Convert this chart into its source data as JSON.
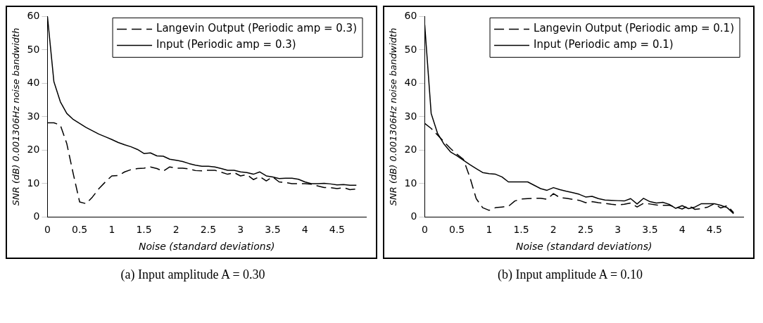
{
  "chart_data": [
    {
      "type": "line",
      "xlabel": "Noise (standard deviations)",
      "ylabel": "SNR (dB) 0.001306Hz noise bandwidth",
      "legend": "top right",
      "grid": false,
      "xlim": [
        0,
        4.95
      ],
      "xticks": [
        0,
        0.5,
        1,
        1.5,
        2,
        2.5,
        3,
        3.5,
        4,
        4.5
      ],
      "ylim": [
        0,
        60
      ],
      "yticks": [
        0,
        10,
        20,
        30,
        40,
        50,
        60
      ],
      "annotations": [
        "(a) Input amplitude A = 0.30"
      ],
      "x": [
        0,
        0.1,
        0.2,
        0.3,
        0.4,
        0.5,
        0.6,
        0.7,
        0.8,
        0.9,
        1.0,
        1.1,
        1.2,
        1.3,
        1.4,
        1.5,
        1.6,
        1.7,
        1.8,
        1.9,
        2.0,
        2.1,
        2.2,
        2.3,
        2.4,
        2.5,
        2.6,
        2.7,
        2.8,
        2.9,
        3.0,
        3.1,
        3.2,
        3.3,
        3.4,
        3.5,
        3.6,
        3.7,
        3.8,
        3.9,
        4.0,
        4.1,
        4.2,
        4.3,
        4.4,
        4.5,
        4.6,
        4.7,
        4.8
      ],
      "series": [
        {
          "name": "Langevin Output (Periodic amp = 0.3)",
          "color": "#000000",
          "line_style": "dashed",
          "values": [
            28.2,
            28.2,
            27.5,
            22,
            13,
            4.5,
            4,
            6,
            8.5,
            10.5,
            12.3,
            12.4,
            13.5,
            14.2,
            14.5,
            14.6,
            15,
            14.5,
            13.7,
            15,
            14.6,
            14.6,
            14.4,
            13.9,
            13.8,
            14,
            14,
            13.4,
            12.8,
            13.3,
            12.3,
            12.7,
            11.2,
            12.1,
            10.8,
            12,
            10.5,
            10.3,
            10,
            10,
            10,
            9.8,
            9.3,
            8.8,
            8.8,
            8.5,
            8.8,
            8.2,
            8.4
          ]
        },
        {
          "name": "Input (Periodic amp = 0.3)",
          "color": "#000000",
          "line_style": "solid",
          "values": [
            60,
            40.5,
            34.5,
            31,
            29.2,
            28,
            26.8,
            25.8,
            24.8,
            24,
            23.2,
            22.3,
            21.6,
            21,
            20.2,
            19,
            19.2,
            18.3,
            18.2,
            17.3,
            17,
            16.6,
            16,
            15.5,
            15.2,
            15.2,
            15,
            14.5,
            14,
            14,
            13.5,
            13.3,
            12.8,
            13.5,
            12.3,
            12,
            11.5,
            11.6,
            11.6,
            11.3,
            10.5,
            10,
            10,
            10.1,
            9.9,
            9.6,
            9.7,
            9.5,
            9.5
          ]
        }
      ]
    },
    {
      "type": "line",
      "xlabel": "Noise (standard deviations)",
      "ylabel": "SNR (dB) 0.001306Hz noise bandwidth",
      "legend": "top right",
      "grid": false,
      "xlim": [
        0,
        4.95
      ],
      "xticks": [
        0,
        0.5,
        1,
        1.5,
        2,
        2.5,
        3,
        3.5,
        4,
        4.5
      ],
      "ylim": [
        0,
        60
      ],
      "yticks": [
        0,
        10,
        20,
        30,
        40,
        50,
        60
      ],
      "annotations": [
        "(b) Input amplitude A = 0.10"
      ],
      "x": [
        0,
        0.1,
        0.2,
        0.3,
        0.4,
        0.5,
        0.6,
        0.7,
        0.8,
        0.9,
        1.0,
        1.1,
        1.2,
        1.3,
        1.4,
        1.5,
        1.6,
        1.7,
        1.8,
        1.9,
        2.0,
        2.1,
        2.2,
        2.3,
        2.4,
        2.5,
        2.6,
        2.7,
        2.8,
        2.9,
        3.0,
        3.1,
        3.2,
        3.3,
        3.4,
        3.5,
        3.6,
        3.7,
        3.8,
        3.9,
        4.0,
        4.1,
        4.2,
        4.3,
        4.4,
        4.5,
        4.6,
        4.7,
        4.8
      ],
      "series": [
        {
          "name": "Langevin Output (Periodic amp = 0.1)",
          "color": "#000000",
          "line_style": "dashed",
          "values": [
            28,
            26.5,
            24.5,
            22.5,
            20.5,
            18.8,
            17.3,
            12,
            5.5,
            2.8,
            2,
            2.8,
            3,
            3.2,
            4.8,
            5.4,
            5.5,
            5.6,
            5.6,
            5.3,
            7,
            5.8,
            5.6,
            5.3,
            5,
            4.3,
            4.6,
            4.3,
            4.1,
            3.8,
            3.6,
            3.8,
            4.2,
            3,
            4.1,
            3.9,
            3.6,
            3.5,
            3.5,
            3,
            2.4,
            3.4,
            2.3,
            2.5,
            3,
            4,
            2.7,
            3.4,
            1.3
          ]
        },
        {
          "name": "Input (Periodic amp = 0.1)",
          "color": "#000000",
          "line_style": "solid",
          "values": [
            57.5,
            31,
            25,
            21.8,
            19.5,
            18.3,
            17,
            15.7,
            14.5,
            13.3,
            13,
            12.8,
            12,
            10.5,
            10.5,
            10.5,
            10.5,
            9.5,
            8.5,
            8,
            8.8,
            8.2,
            7.7,
            7.3,
            6.8,
            6,
            6.2,
            5.5,
            5.1,
            5,
            4.9,
            4.8,
            5.5,
            3.9,
            5.6,
            4.6,
            4.2,
            4.4,
            3.8,
            2.6,
            3.4,
            2.5,
            3,
            4,
            4,
            4,
            3.5,
            2.8,
            1
          ]
        }
      ]
    }
  ]
}
